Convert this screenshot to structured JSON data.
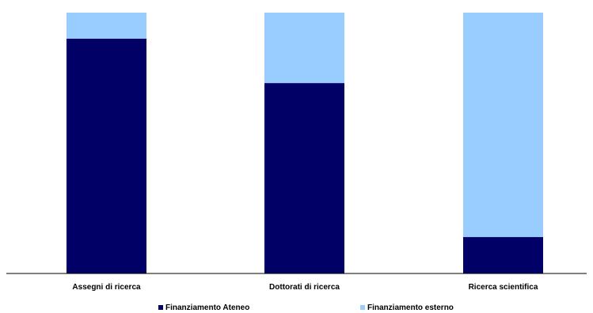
{
  "chart_data": {
    "type": "bar",
    "stacked": true,
    "normalized": true,
    "categories": [
      "Assegni di ricerca",
      "Dottorati di ricerca",
      "Ricerca scientifica"
    ],
    "series": [
      {
        "name": "Finanziamento Ateneo",
        "color": "#000066",
        "values": [
          90,
          73,
          14
        ]
      },
      {
        "name": "Finanziamento esterno",
        "color": "#99CCFF",
        "values": [
          10,
          27,
          86
        ]
      }
    ],
    "ylim": [
      0,
      100
    ],
    "grid": false,
    "legend": "bottom",
    "title": "",
    "xlabel": "",
    "ylabel": ""
  }
}
